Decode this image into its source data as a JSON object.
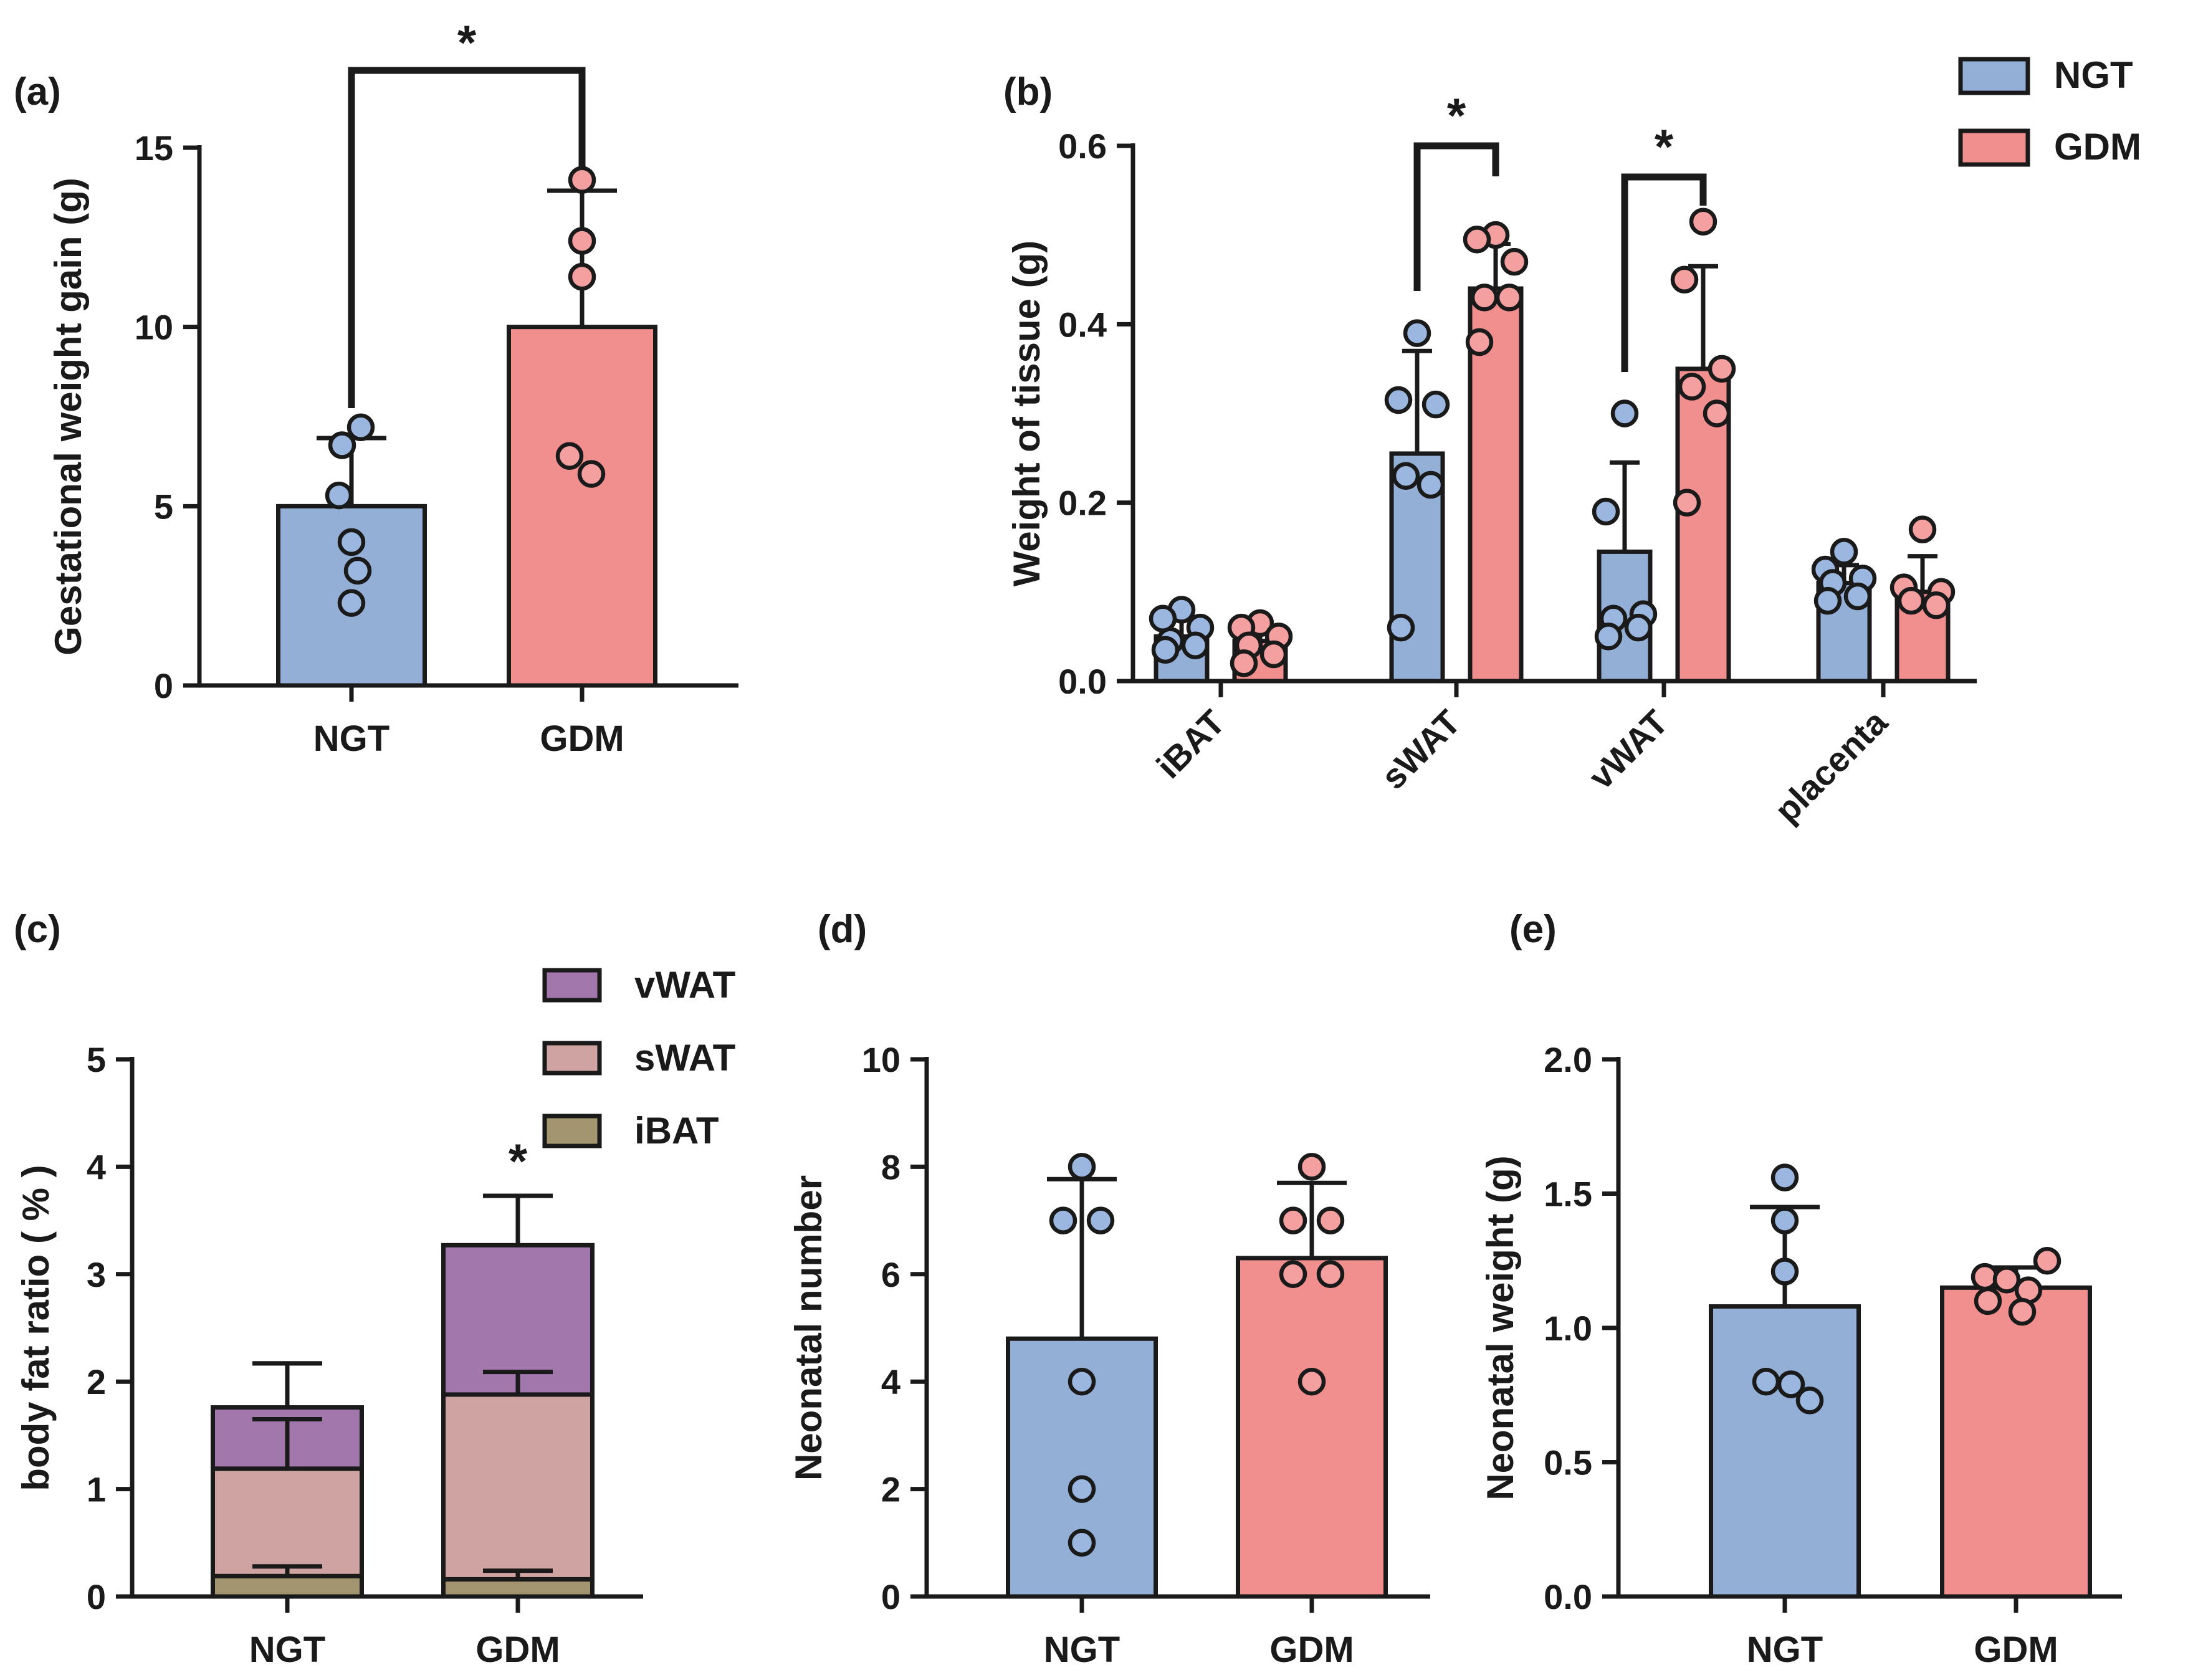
{
  "colors": {
    "NGT": "#94afd6",
    "GDM": "#f18f8f",
    "NGT_dot": "#9bb7e0",
    "GDM_dot": "#f5a0a0",
    "vWAT": "#a277ac",
    "sWAT": "#cfa3a1",
    "iBAT": "#a39570",
    "ink": "#1a1a1a"
  },
  "chart_data": [
    {
      "panel": "(a)",
      "type": "bar",
      "ylabel": "Gestational weight gain (g)",
      "ylim": [
        0,
        15
      ],
      "yticks": [
        0,
        5,
        10,
        15
      ],
      "categories": [
        "NGT",
        "GDM"
      ],
      "values": [
        5.0,
        10.0
      ],
      "sd": [
        1.9,
        3.8
      ],
      "points": [
        [
          7.2,
          6.7,
          5.3,
          4.0,
          3.2,
          2.3
        ],
        [
          14.1,
          12.4,
          11.4,
          6.4,
          5.9
        ]
      ],
      "significance": [
        {
          "between": [
            "NGT",
            "GDM"
          ],
          "label": "*"
        }
      ]
    },
    {
      "panel": "(b)",
      "type": "bar",
      "ylabel": "Weight of tissue (g)",
      "ylim": [
        0,
        0.6
      ],
      "yticks": [
        "0.0",
        "0.2",
        "0.4",
        "0.6"
      ],
      "categories": [
        "iBAT",
        "sWAT",
        "vWAT",
        "placenta"
      ],
      "series": [
        {
          "name": "NGT",
          "values": [
            0.05,
            0.255,
            0.145,
            0.11
          ],
          "sd": [
            0.02,
            0.115,
            0.1,
            0.02
          ],
          "points": [
            [
              0.08,
              0.07,
              0.06,
              0.045,
              0.04,
              0.035
            ],
            [
              0.39,
              0.315,
              0.31,
              0.23,
              0.22,
              0.06
            ],
            [
              0.3,
              0.19,
              0.075,
              0.07,
              0.06,
              0.05
            ],
            [
              0.145,
              0.125,
              0.115,
              0.11,
              0.095,
              0.09
            ]
          ]
        },
        {
          "name": "GDM",
          "values": [
            0.045,
            0.44,
            0.35,
            0.1
          ],
          "sd": [
            0.015,
            0.05,
            0.115,
            0.04
          ],
          "points": [
            [
              0.065,
              0.06,
              0.05,
              0.04,
              0.03,
              0.02
            ],
            [
              0.5,
              0.495,
              0.47,
              0.43,
              0.43,
              0.38
            ],
            [
              0.515,
              0.45,
              0.35,
              0.33,
              0.3,
              0.2
            ],
            [
              0.17,
              0.105,
              0.1,
              0.09,
              0.085
            ]
          ]
        }
      ],
      "legend": [
        "NGT",
        "GDM"
      ],
      "legend_position": "top-right",
      "significance": [
        {
          "category": "sWAT",
          "label": "*"
        },
        {
          "category": "vWAT",
          "label": "*"
        }
      ]
    },
    {
      "panel": "(c)",
      "type": "bar",
      "stacked": true,
      "ylabel": "body fat ratio ( % )",
      "ylim": [
        0,
        5
      ],
      "yticks": [
        0,
        1,
        2,
        3,
        4,
        5
      ],
      "categories": [
        "NGT",
        "GDM"
      ],
      "series": [
        {
          "name": "iBAT",
          "values": [
            0.19,
            0.16
          ],
          "top_sd": [
            0.28,
            0.24
          ]
        },
        {
          "name": "sWAT",
          "values": [
            1.0,
            1.72
          ],
          "top_sd": [
            1.65,
            2.09
          ]
        },
        {
          "name": "vWAT",
          "values": [
            0.57,
            1.39
          ],
          "top_sd": [
            2.17,
            3.73
          ]
        }
      ],
      "legend": [
        "vWAT",
        "sWAT",
        "iBAT"
      ],
      "legend_position": "top-right",
      "significance": [
        {
          "category": "GDM",
          "label": "*"
        }
      ]
    },
    {
      "panel": "(d)",
      "type": "bar",
      "ylabel": "Neonatal number",
      "ylim": [
        0,
        10
      ],
      "yticks": [
        0,
        2,
        4,
        6,
        8,
        10
      ],
      "categories": [
        "NGT",
        "GDM"
      ],
      "values": [
        4.8,
        6.3
      ],
      "sd": [
        2.97,
        1.4
      ],
      "points": [
        [
          8,
          7,
          7,
          4,
          2,
          1
        ],
        [
          8,
          7,
          7,
          6,
          6,
          4
        ]
      ]
    },
    {
      "panel": "(e)",
      "type": "bar",
      "ylabel": "Neonatal weight (g)",
      "ylim": [
        0,
        2.0
      ],
      "yticks": [
        "0.0",
        "0.5",
        "1.0",
        "1.5",
        "2.0"
      ],
      "categories": [
        "NGT",
        "GDM"
      ],
      "values": [
        1.08,
        1.15
      ],
      "sd": [
        0.37,
        0.075
      ],
      "points": [
        [
          1.56,
          1.4,
          1.21,
          0.8,
          0.79,
          0.73
        ],
        [
          1.25,
          1.19,
          1.18,
          1.14,
          1.1,
          1.06
        ]
      ]
    }
  ]
}
